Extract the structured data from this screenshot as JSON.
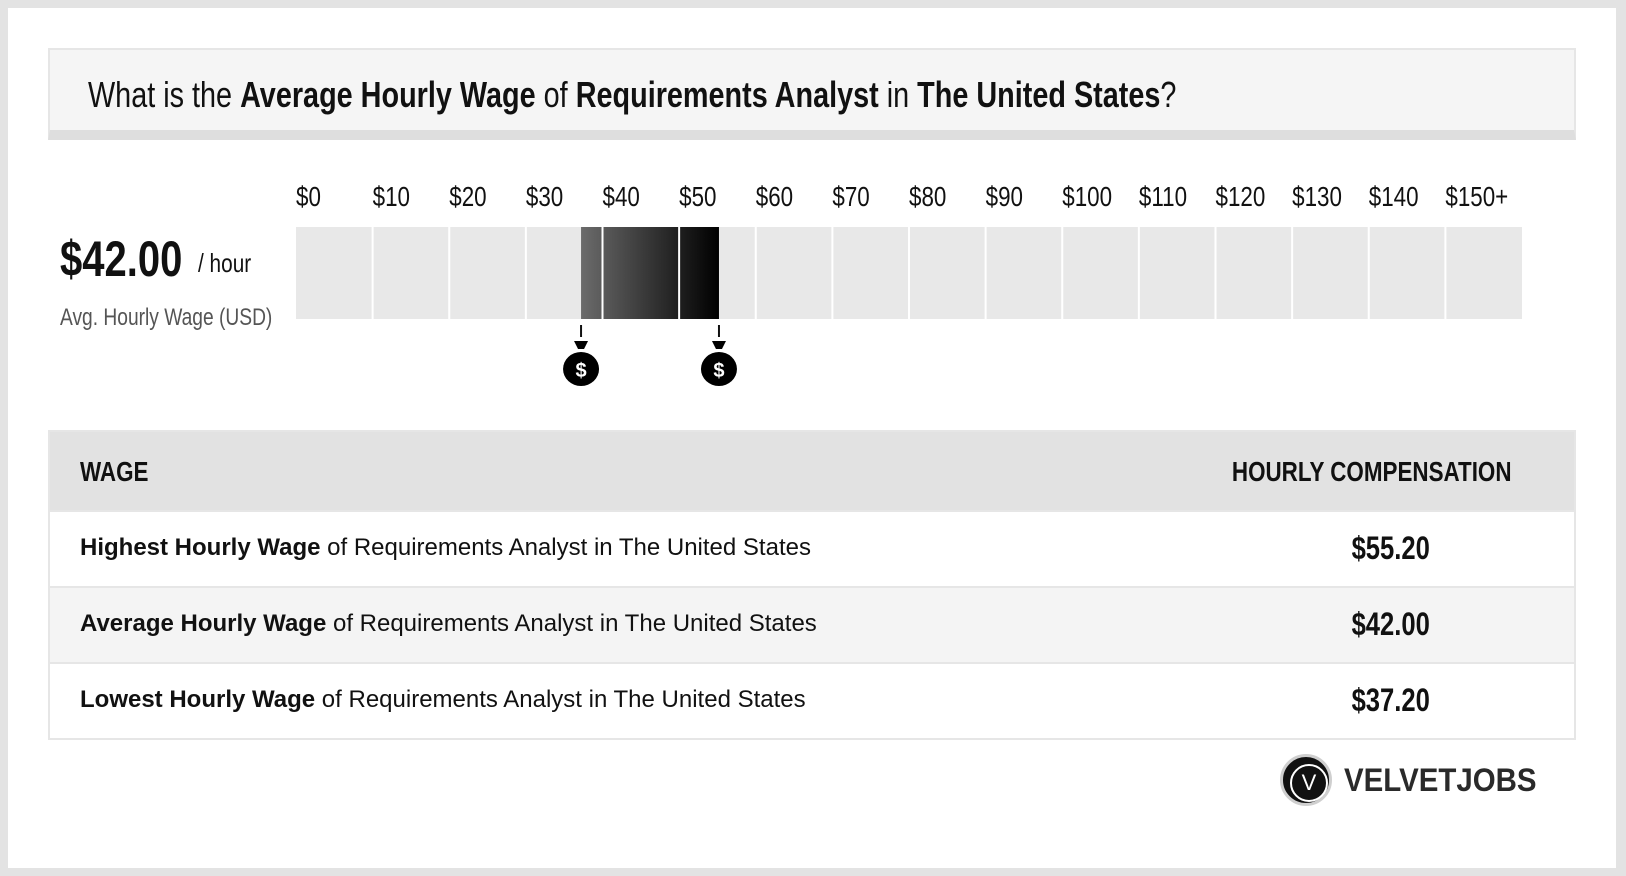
{
  "header": {
    "q_prefix": "What is the",
    "q_bold1": "Average Hourly Wage",
    "q_mid1": "of",
    "q_bold2": "Requirements Analyst",
    "q_mid2": "in",
    "q_bold3": "The United States",
    "q_suffix": "?"
  },
  "summary": {
    "avg_value": "$42.00",
    "unit": "/ hour",
    "label": "Avg. Hourly Wage (USD)"
  },
  "chart_data": {
    "type": "range-bar",
    "tick_labels": [
      "$0",
      "$10",
      "$20",
      "$30",
      "$40",
      "$50",
      "$60",
      "$70",
      "$80",
      "$90",
      "$100",
      "$110",
      "$120",
      "$130",
      "$140",
      "$150+"
    ],
    "xlim": [
      0,
      160
    ],
    "range": {
      "low": 37.2,
      "average": 42.0,
      "high": 55.2
    },
    "marker_values": [
      37.2,
      55.2
    ],
    "marker_icon": "money-bag-icon",
    "marker_glyph": "$",
    "colors": {
      "bar_bg": "#e8e8e8",
      "range_light": "#6b6b6b",
      "range_dark": "#000000"
    }
  },
  "table": {
    "col_wage": "WAGE",
    "col_comp": "HOURLY COMPENSATION",
    "rows": [
      {
        "bold": "Highest Hourly Wage",
        "rest": " of Requirements Analyst in The United States",
        "value": "$55.20"
      },
      {
        "bold": "Average Hourly Wage",
        "rest": " of Requirements Analyst in The United States",
        "value": "$42.00"
      },
      {
        "bold": "Lowest Hourly Wage",
        "rest": " of Requirements Analyst in The United States",
        "value": "$37.20"
      }
    ]
  },
  "logo": {
    "letter": "V",
    "text": "VELVETJOBS"
  }
}
